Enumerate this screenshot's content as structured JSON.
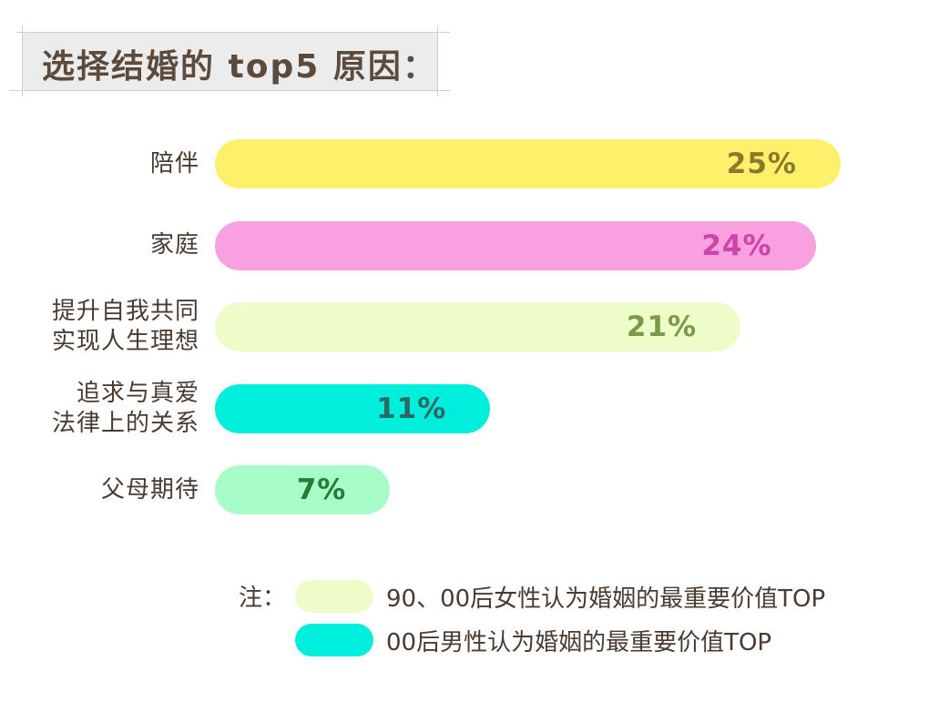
{
  "title": "选择结婚的 top5 原因：",
  "chart_data": {
    "type": "bar",
    "orientation": "horizontal",
    "categories": [
      [
        "陪伴"
      ],
      [
        "家庭"
      ],
      [
        "提升自我共同",
        "实现人生理想"
      ],
      [
        "追求与真爱",
        "法律上的关系"
      ],
      [
        "父母期待"
      ]
    ],
    "values": [
      25,
      24,
      21,
      11,
      7
    ],
    "value_labels": [
      "25%",
      "24%",
      "21%",
      "11%",
      "7%"
    ],
    "bar_colors": [
      "#fdf06a",
      "#f9a0e0",
      "#edfcc8",
      "#00efdc",
      "#a8fcc8"
    ],
    "label_colors": [
      "#8a7a2a",
      "#cc44aa",
      "#7a9a4a",
      "#2a6a66",
      "#2a7a3a"
    ],
    "xlim": [
      0,
      25
    ],
    "grid": false
  },
  "legend": {
    "note_label": "注：",
    "items": [
      {
        "label": "90、00后女性认为婚姻的最重要价值TOP",
        "color": "#edfcc8"
      },
      {
        "label": "00后男性认为婚姻的最重要价值TOP",
        "color": "#00efdc"
      }
    ]
  }
}
